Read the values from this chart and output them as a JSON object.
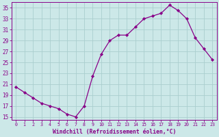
{
  "x": [
    0,
    1,
    2,
    3,
    4,
    5,
    6,
    7,
    8,
    9,
    10,
    11,
    12,
    13,
    14,
    15,
    16,
    17,
    18,
    19,
    20,
    21,
    22,
    23
  ],
  "y": [
    20.5,
    19.5,
    18.5,
    17.5,
    17.0,
    16.5,
    15.5,
    15.0,
    17.0,
    22.5,
    26.5,
    29.0,
    30.0,
    30.0,
    31.5,
    33.0,
    33.5,
    34.0,
    35.5,
    34.5,
    33.0,
    29.5,
    27.5,
    25.5
  ],
  "line_color": "#880088",
  "marker": "D",
  "marker_size": 2.2,
  "bg_color": "#cce8e8",
  "grid_color": "#aacece",
  "xlabel": "Windchill (Refroidissement éolien,°C)",
  "xlim": [
    -0.5,
    23.5
  ],
  "ylim": [
    14.5,
    36
  ],
  "yticks": [
    15,
    17,
    19,
    21,
    23,
    25,
    27,
    29,
    31,
    33,
    35
  ],
  "xticks": [
    0,
    1,
    2,
    3,
    4,
    5,
    6,
    7,
    8,
    9,
    10,
    11,
    12,
    13,
    14,
    15,
    16,
    17,
    18,
    19,
    20,
    21,
    22,
    23
  ],
  "tick_color": "#880088",
  "label_color": "#880088",
  "spine_color": "#880088",
  "xlabel_fontsize": 5.8,
  "xtick_fontsize": 4.8,
  "ytick_fontsize": 5.5
}
